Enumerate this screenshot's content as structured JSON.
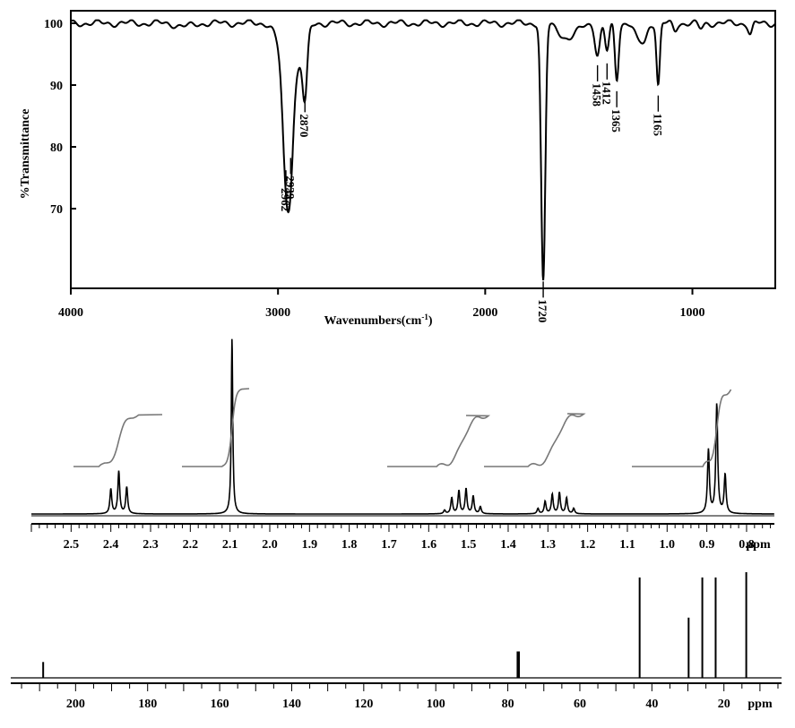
{
  "chart_data": [
    {
      "type": "line",
      "panel": "ir",
      "xlabel": "Wavenumbers(cm-1)",
      "xlabel_main": "Wavenumbers(cm",
      "xlabel_sup": "-1",
      "xlabel_end": ")",
      "ylabel": "%Transmittance",
      "xlim": [
        4000,
        600
      ],
      "ylim": [
        56,
        102
      ],
      "x_ticks": [
        {
          "value": 4000,
          "label": "4000"
        },
        {
          "value": 3000,
          "label": "3000"
        },
        {
          "value": 2000,
          "label": "2000"
        },
        {
          "value": 1000,
          "label": "1000"
        }
      ],
      "y_ticks": [
        {
          "value": 100,
          "label": "100"
        },
        {
          "value": 90,
          "label": "90"
        },
        {
          "value": 80,
          "label": "80"
        },
        {
          "value": 70,
          "label": "70"
        }
      ],
      "peaks": [
        {
          "x": 2962,
          "y": 76.5,
          "label": "2962"
        },
        {
          "x": 2939,
          "y": 78.5,
          "label": "2939"
        },
        {
          "x": 2870,
          "y": 88.5,
          "label": "2870"
        },
        {
          "x": 1720,
          "y": 58.5,
          "label": "1720"
        },
        {
          "x": 1458,
          "y": 93.5,
          "label": "1458"
        },
        {
          "x": 1412,
          "y": 93.8,
          "label": "1412"
        },
        {
          "x": 1365,
          "y": 89.3,
          "label": "1365"
        },
        {
          "x": 1165,
          "y": 88.6,
          "label": "1165"
        }
      ],
      "grid": false
    },
    {
      "type": "line",
      "panel": "h-nmr",
      "xlabel": "ppm",
      "xlim": [
        2.6,
        0.73
      ],
      "x_ticks": [
        {
          "value": 2.5,
          "label": "2.5"
        },
        {
          "value": 2.4,
          "label": "2.4"
        },
        {
          "value": 2.3,
          "label": "2.3"
        },
        {
          "value": 2.2,
          "label": "2.2"
        },
        {
          "value": 2.1,
          "label": "2.1"
        },
        {
          "value": 2.0,
          "label": "2.0"
        },
        {
          "value": 1.9,
          "label": "1.9"
        },
        {
          "value": 1.8,
          "label": "1.8"
        },
        {
          "value": 1.7,
          "label": "1.7"
        },
        {
          "value": 1.6,
          "label": "1.6"
        },
        {
          "value": 1.5,
          "label": "1.5"
        },
        {
          "value": 1.4,
          "label": "1.4"
        },
        {
          "value": 1.3,
          "label": "1.3"
        },
        {
          "value": 1.2,
          "label": "1.2"
        },
        {
          "value": 1.1,
          "label": "1.1"
        },
        {
          "value": 1.0,
          "label": "1.0"
        },
        {
          "value": 0.9,
          "label": "0.9"
        },
        {
          "value": 0.8,
          "label": "0.8"
        }
      ],
      "signals": [
        {
          "center": 2.38,
          "multiplicity": 3,
          "spacing": 0.02,
          "heights": [
            0.14,
            0.24,
            0.15
          ]
        },
        {
          "center": 2.095,
          "multiplicity": 1,
          "spacing": 0,
          "heights": [
            1.0
          ]
        },
        {
          "center": 1.515,
          "multiplicity": 6,
          "spacing": 0.018,
          "heights": [
            0.02,
            0.09,
            0.13,
            0.14,
            0.1,
            0.04
          ]
        },
        {
          "center": 1.28,
          "multiplicity": 6,
          "spacing": 0.018,
          "heights": [
            0.03,
            0.07,
            0.11,
            0.12,
            0.09,
            0.03
          ]
        },
        {
          "center": 0.875,
          "multiplicity": 3,
          "spacing": 0.021,
          "heights": [
            0.36,
            0.62,
            0.22
          ]
        }
      ],
      "integrals": [
        {
          "from": 2.43,
          "to": 2.33
        },
        {
          "from": 2.12,
          "to": 2.07
        },
        {
          "from": 1.58,
          "to": 1.45
        },
        {
          "from": 1.35,
          "to": 1.21
        },
        {
          "from": 0.91,
          "to": 0.84
        }
      ],
      "grid": false
    },
    {
      "type": "line",
      "panel": "c-nmr",
      "xlabel": "ppm",
      "xlim": [
        218,
        4
      ],
      "x_ticks": [
        {
          "value": 200,
          "label": "200"
        },
        {
          "value": 180,
          "label": "180"
        },
        {
          "value": 160,
          "label": "160"
        },
        {
          "value": 140,
          "label": "140"
        },
        {
          "value": 120,
          "label": "120"
        },
        {
          "value": 100,
          "label": "100"
        },
        {
          "value": 80,
          "label": "80"
        },
        {
          "value": 60,
          "label": "60"
        },
        {
          "value": 40,
          "label": "40"
        },
        {
          "value": 20,
          "label": "20"
        }
      ],
      "peaks": [
        {
          "x": 209.0,
          "height": 0.15
        },
        {
          "x": 77.3,
          "height": 0.25
        },
        {
          "x": 76.9,
          "height": 0.25
        },
        {
          "x": 43.4,
          "height": 0.95
        },
        {
          "x": 29.8,
          "height": 0.57
        },
        {
          "x": 26.0,
          "height": 0.95
        },
        {
          "x": 22.3,
          "height": 0.95
        },
        {
          "x": 13.8,
          "height": 1.0
        }
      ],
      "grid": false
    }
  ]
}
